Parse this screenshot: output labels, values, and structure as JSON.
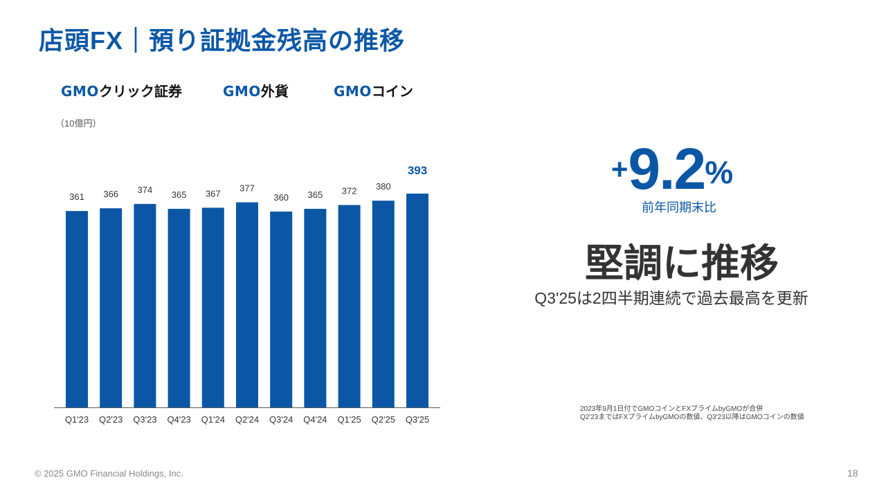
{
  "header": {
    "title": "店頭FX｜預り証拠金残高の推移"
  },
  "logos": [
    {
      "brand": "GMO",
      "suffix": "クリック証券"
    },
    {
      "brand": "GMO",
      "suffix": "外貨"
    },
    {
      "brand": "GMO",
      "suffix": "コイン"
    }
  ],
  "unit_label": "（10億円）",
  "chart_data": {
    "type": "bar",
    "categories": [
      "Q1'23",
      "Q2'23",
      "Q3'23",
      "Q4'23",
      "Q1'24",
      "Q2'24",
      "Q3'24",
      "Q4'24",
      "Q1'25",
      "Q2'25",
      "Q3'25"
    ],
    "values": [
      361,
      366,
      374,
      365,
      367,
      377,
      360,
      365,
      372,
      380,
      393
    ],
    "ylabel": "（10億円）",
    "highlight_last": true,
    "grid": false,
    "colors": {
      "bar": "#0b57a6",
      "label": "#333333",
      "highlight_label": "#0b57a6",
      "axis": "#555555"
    }
  },
  "kpi": {
    "sign": "+",
    "value": "9.2",
    "unit": "%",
    "label": "前年同期末比",
    "headline": "堅調に推移",
    "subline": "Q3'25は2四半期連続で過去最高を更新"
  },
  "note": {
    "line1": "2023年9月1日付でGMOコインとFXプライムbyGMOが合併",
    "line2": "Q2'23まではFXプライムbyGMOの数値、Q3'23以降はGMOコインの数値"
  },
  "footer": {
    "copyright": "© 2025 GMO Financial Holdings, Inc.",
    "page": "18"
  }
}
